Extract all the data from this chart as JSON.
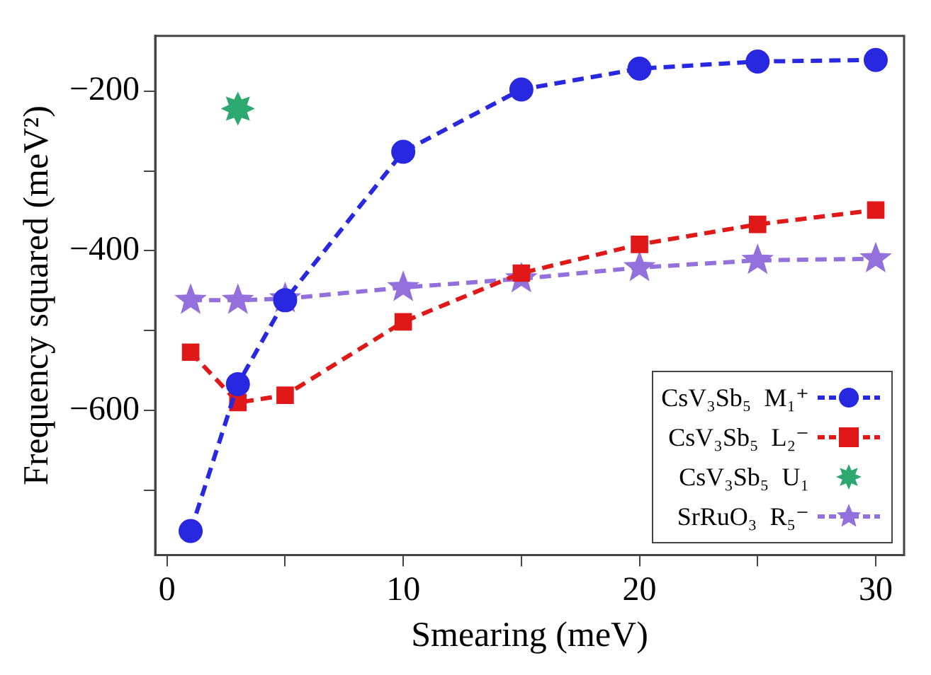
{
  "chart_data": {
    "type": "line",
    "xlabel": "Smearing (meV)",
    "ylabel": "Frequency squared (meV²)",
    "xlim": [
      -0.5,
      31.2
    ],
    "ylim": [
      -781,
      -131
    ],
    "xticks": [
      0,
      {
        "value": 5,
        "label": null
      },
      10,
      {
        "value": 15,
        "label": null
      },
      20,
      {
        "value": 25,
        "label": null
      },
      30
    ],
    "yticks": [
      {
        "value": -700,
        "label": null
      },
      {
        "value": -600,
        "label": "−600"
      },
      {
        "value": -500,
        "label": null
      },
      {
        "value": -400,
        "label": "−400"
      },
      {
        "value": -300,
        "label": null
      },
      {
        "value": -200,
        "label": "−200"
      }
    ],
    "grid": false,
    "legend": "bottom right",
    "line_style": "dashed",
    "series": [
      {
        "name": "CsV₃Sb₅  M₁⁺",
        "color": "#2828e0",
        "marker": "circle",
        "x": [
          1,
          3,
          5,
          10,
          15,
          20,
          25,
          30
        ],
        "values": [
          -751,
          -567,
          -462,
          -276,
          -198,
          -172,
          -163,
          -161
        ]
      },
      {
        "name": "CsV₃Sb₅  L₂⁻",
        "color": "#e01818",
        "marker": "square",
        "x": [
          1,
          3,
          5,
          10,
          15,
          20,
          25,
          30
        ],
        "values": [
          -527,
          -590,
          -581,
          -489,
          -428,
          -392,
          -367,
          -349
        ]
      },
      {
        "name": "CsV₃Sb₅  U₁",
        "color": "#2ca870",
        "type": "scatter",
        "marker": "star",
        "x": [
          3
        ],
        "values": [
          -222
        ]
      },
      {
        "name": "SrRuO₃  R₅⁻",
        "color": "#9370db",
        "marker": "star",
        "x": [
          1,
          3,
          5,
          10,
          15,
          20,
          25,
          30
        ],
        "values": [
          -462,
          -462,
          -460,
          -446,
          -435,
          -421,
          -412,
          -410
        ]
      }
    ]
  }
}
